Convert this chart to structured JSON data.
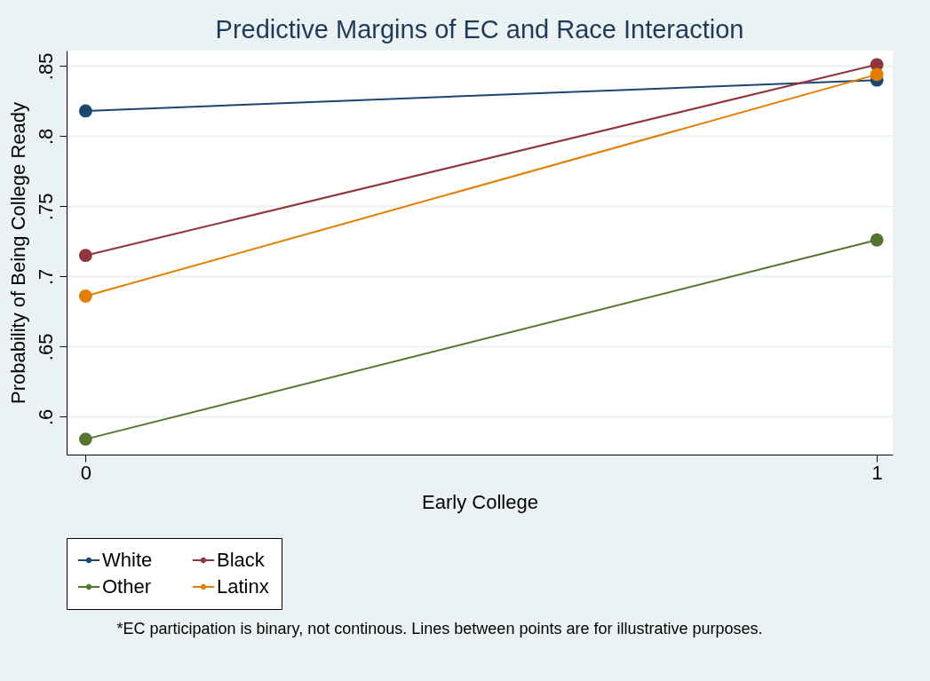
{
  "chart_data": {
    "type": "line",
    "title": "Predictive Margins of EC and Race Interaction",
    "xlabel": "Early College",
    "ylabel": "Probability of Being College Ready",
    "x": [
      0,
      1
    ],
    "series": [
      {
        "name": "White",
        "color": "#1a476f",
        "values": [
          0.818,
          0.84
        ]
      },
      {
        "name": "Black",
        "color": "#90353b",
        "values": [
          0.715,
          0.851
        ]
      },
      {
        "name": "Other",
        "color": "#55752f",
        "values": [
          0.584,
          0.726
        ]
      },
      {
        "name": "Latinx",
        "color": "#e37e00",
        "values": [
          0.686,
          0.844
        ]
      }
    ],
    "xlim": [
      -0.024,
      1.02
    ],
    "xticks": [
      0,
      1
    ],
    "ylim": [
      0.573,
      0.861
    ],
    "yticks": [
      {
        "value": 0.6,
        "label": ".6"
      },
      {
        "value": 0.65,
        "label": ".65"
      },
      {
        "value": 0.7,
        "label": ".7"
      },
      {
        "value": 0.75,
        "label": ".75"
      },
      {
        "value": 0.8,
        "label": ".8"
      },
      {
        "value": 0.85,
        "label": ".85"
      }
    ],
    "grid": "y",
    "legend": "bottom",
    "marker": "circle",
    "line_style": "solid",
    "annotations": [
      "*EC participation is binary, not continous. Lines between points are for illustrative purposes."
    ]
  }
}
